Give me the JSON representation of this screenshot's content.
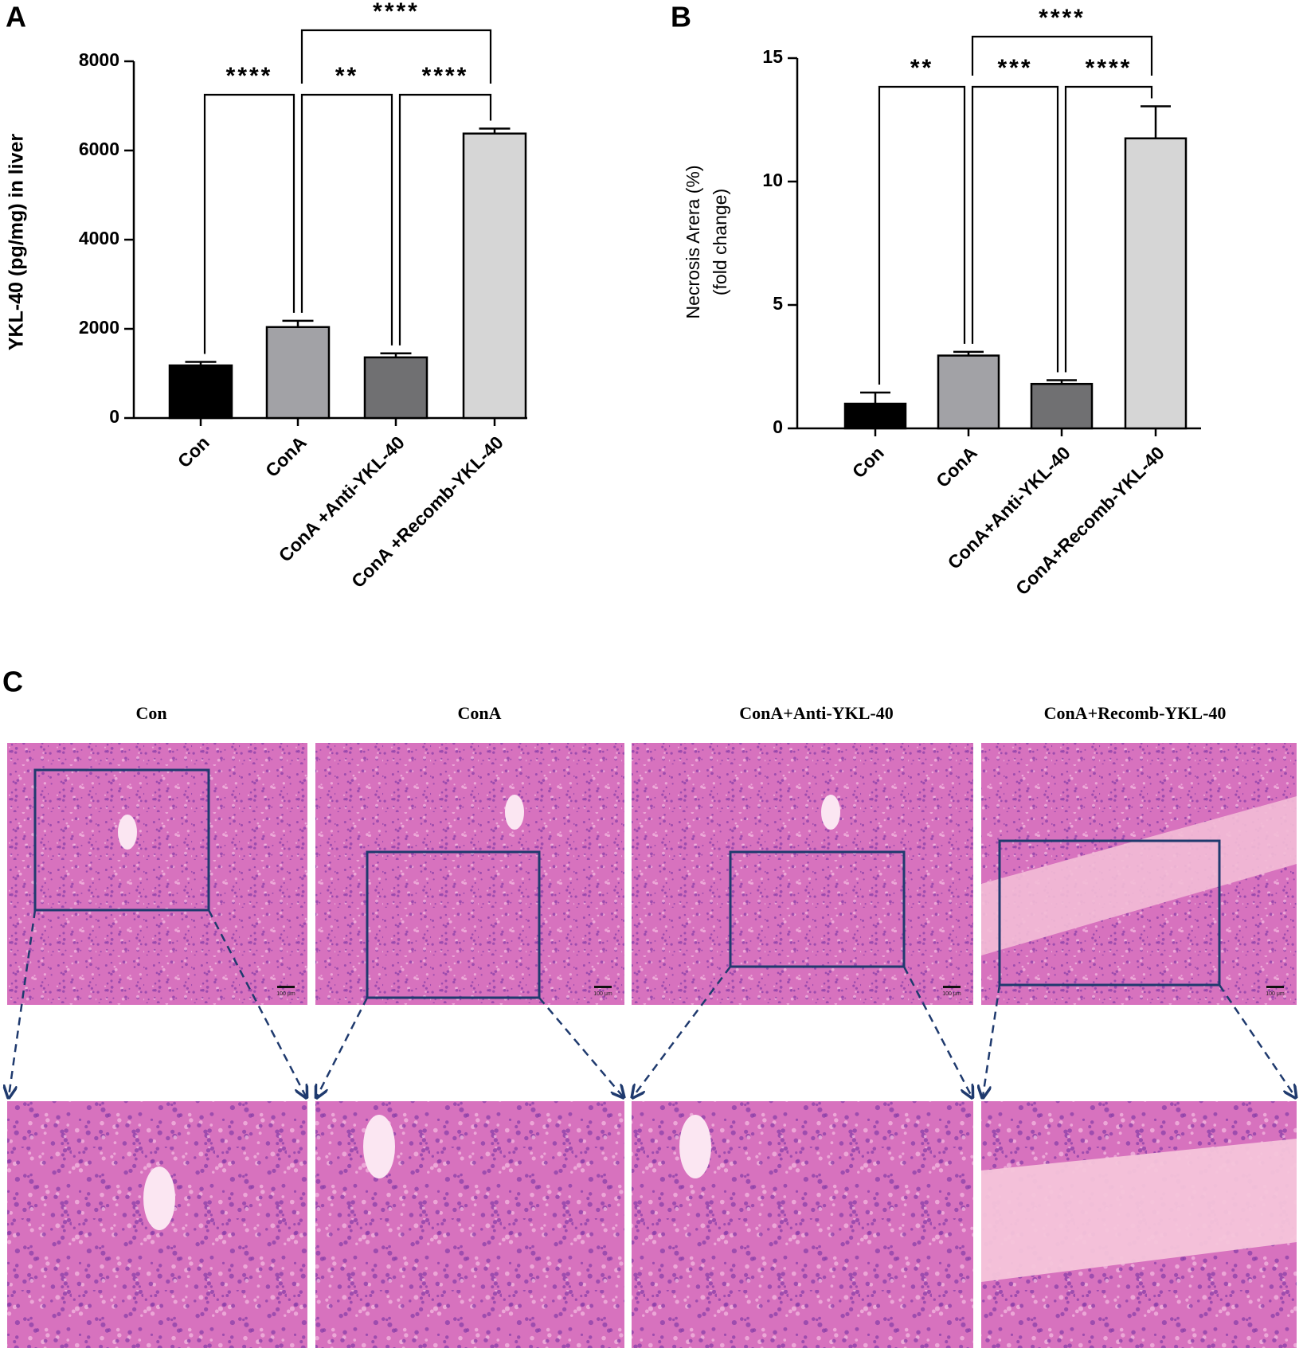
{
  "chart_data": [
    {
      "type": "bar",
      "panel": "A",
      "y_label": "YKL-40 (pg/mg) in liver",
      "categories": [
        "Con",
        "ConA",
        "ConA +Anti-YKL-40",
        "ConA +Recomb-YKL-40"
      ],
      "values": [
        1180,
        2040,
        1360,
        6380
      ],
      "errors": [
        80,
        140,
        90,
        110
      ],
      "colors": [
        "#000000",
        "#a2a2a6",
        "#707072",
        "#d6d6d6"
      ],
      "ylim": [
        0,
        8000
      ],
      "yticks": [
        0,
        2000,
        4000,
        6000,
        8000
      ],
      "annotations": [
        {
          "text": "****",
          "between": [
            "Con",
            "ConA"
          ]
        },
        {
          "text": "**",
          "between": [
            "ConA",
            "ConA +Anti-YKL-40"
          ]
        },
        {
          "text": "****",
          "between": [
            "ConA +Anti-YKL-40",
            "ConA +Recomb-YKL-40"
          ]
        },
        {
          "text": "****",
          "between": [
            "ConA",
            "ConA +Recomb-YKL-40"
          ]
        }
      ]
    },
    {
      "type": "bar",
      "panel": "B",
      "y_label": [
        "Necrosis Arera (%)",
        "(fold change)"
      ],
      "categories": [
        "Con",
        "ConA",
        "ConA+Anti-YKL-40",
        "ConA+Recomb-YKL-40"
      ],
      "values": [
        1.0,
        2.95,
        1.8,
        11.75
      ],
      "errors": [
        0.45,
        0.15,
        0.15,
        1.3
      ],
      "colors": [
        "#000000",
        "#a2a2a6",
        "#707072",
        "#d6d6d6"
      ],
      "ylim": [
        0,
        15
      ],
      "yticks": [
        0,
        5,
        10,
        15
      ],
      "annotations": [
        {
          "text": "**",
          "between": [
            "Con",
            "ConA"
          ]
        },
        {
          "text": "***",
          "between": [
            "ConA",
            "ConA+Anti-YKL-40"
          ]
        },
        {
          "text": "****",
          "between": [
            "ConA+Anti-YKL-40",
            "ConA+Recomb-YKL-40"
          ]
        },
        {
          "text": "****",
          "between": [
            "ConA",
            "ConA+Recomb-YKL-40"
          ]
        }
      ]
    }
  ],
  "histology": {
    "panel": "C",
    "titles": [
      "Con",
      "ConA",
      "ConA+Anti-YKL-40",
      "ConA+Recomb-YKL-40"
    ],
    "scale_bar": "100 μm"
  }
}
